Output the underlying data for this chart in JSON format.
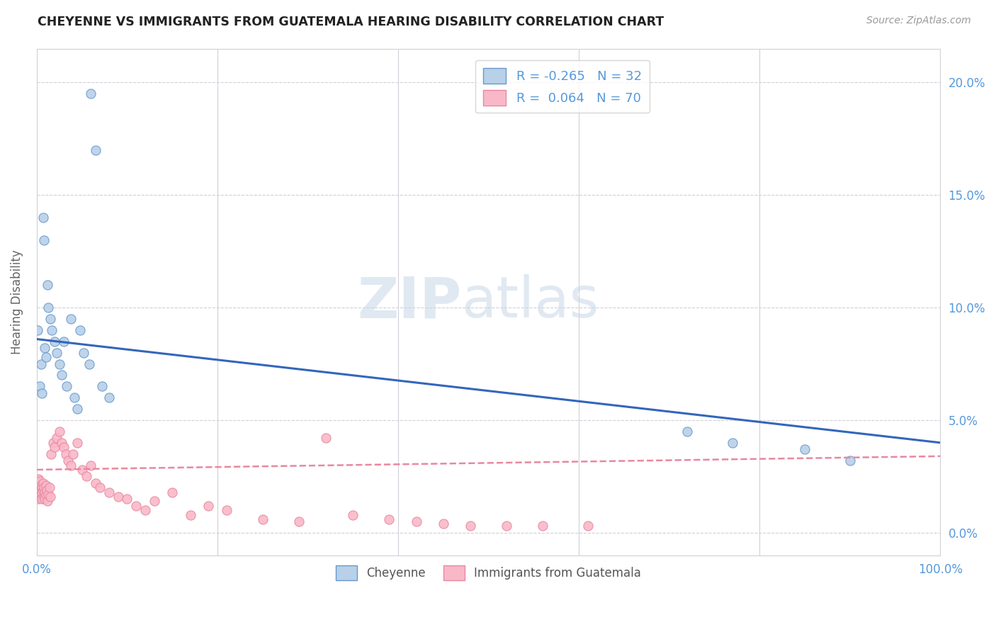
{
  "title": "CHEYENNE VS IMMIGRANTS FROM GUATEMALA HEARING DISABILITY CORRELATION CHART",
  "source": "Source: ZipAtlas.com",
  "ylabel": "Hearing Disability",
  "legend_blue_r": "R = -0.265",
  "legend_blue_n": "N = 32",
  "legend_pink_r": "R =  0.064",
  "legend_pink_n": "N = 70",
  "legend_label_blue": "Cheyenne",
  "legend_label_pink": "Immigrants from Guatemala",
  "watermark_zip": "ZIP",
  "watermark_atlas": "atlas",
  "blue_color": "#b8d0e8",
  "blue_edge_color": "#6699cc",
  "blue_line_color": "#3366bb",
  "pink_color": "#f9b8c8",
  "pink_edge_color": "#e888a0",
  "pink_line_color": "#e888a0",
  "background_color": "#ffffff",
  "grid_color": "#d0d0d8",
  "tick_color": "#5599dd",
  "cheyenne_x": [
    0.001,
    0.003,
    0.005,
    0.006,
    0.007,
    0.008,
    0.009,
    0.01,
    0.012,
    0.013,
    0.015,
    0.017,
    0.02,
    0.022,
    0.025,
    0.028,
    0.03,
    0.033,
    0.038,
    0.042,
    0.045,
    0.048,
    0.052,
    0.058,
    0.06,
    0.065,
    0.072,
    0.08,
    0.72,
    0.77,
    0.85,
    0.9
  ],
  "cheyenne_y": [
    0.09,
    0.065,
    0.075,
    0.062,
    0.14,
    0.13,
    0.082,
    0.078,
    0.11,
    0.1,
    0.095,
    0.09,
    0.085,
    0.08,
    0.075,
    0.07,
    0.085,
    0.065,
    0.095,
    0.06,
    0.055,
    0.09,
    0.08,
    0.075,
    0.195,
    0.17,
    0.065,
    0.06,
    0.045,
    0.04,
    0.037,
    0.032
  ],
  "guatemala_x": [
    0.001,
    0.001,
    0.001,
    0.002,
    0.002,
    0.002,
    0.002,
    0.003,
    0.003,
    0.003,
    0.004,
    0.004,
    0.004,
    0.005,
    0.005,
    0.005,
    0.006,
    0.006,
    0.006,
    0.007,
    0.007,
    0.008,
    0.008,
    0.009,
    0.009,
    0.01,
    0.01,
    0.011,
    0.012,
    0.013,
    0.014,
    0.015,
    0.016,
    0.018,
    0.02,
    0.022,
    0.025,
    0.028,
    0.03,
    0.032,
    0.035,
    0.038,
    0.04,
    0.045,
    0.05,
    0.055,
    0.06,
    0.065,
    0.07,
    0.08,
    0.09,
    0.1,
    0.11,
    0.12,
    0.13,
    0.15,
    0.17,
    0.19,
    0.21,
    0.25,
    0.29,
    0.32,
    0.35,
    0.39,
    0.42,
    0.45,
    0.48,
    0.52,
    0.56,
    0.61
  ],
  "guatemala_y": [
    0.02,
    0.018,
    0.022,
    0.016,
    0.019,
    0.024,
    0.015,
    0.021,
    0.017,
    0.023,
    0.018,
    0.02,
    0.016,
    0.019,
    0.021,
    0.017,
    0.02,
    0.018,
    0.015,
    0.022,
    0.019,
    0.016,
    0.02,
    0.018,
    0.015,
    0.021,
    0.017,
    0.019,
    0.014,
    0.017,
    0.02,
    0.016,
    0.035,
    0.04,
    0.038,
    0.042,
    0.045,
    0.04,
    0.038,
    0.035,
    0.032,
    0.03,
    0.035,
    0.04,
    0.028,
    0.025,
    0.03,
    0.022,
    0.02,
    0.018,
    0.016,
    0.015,
    0.012,
    0.01,
    0.014,
    0.018,
    0.008,
    0.012,
    0.01,
    0.006,
    0.005,
    0.042,
    0.008,
    0.006,
    0.005,
    0.004,
    0.003,
    0.003,
    0.003,
    0.003
  ],
  "cheyenne_trend_x": [
    0.0,
    1.0
  ],
  "cheyenne_trend_y": [
    0.086,
    0.04
  ],
  "guatemala_trend_x": [
    0.0,
    1.0
  ],
  "guatemala_trend_y": [
    0.028,
    0.034
  ],
  "xlim": [
    0.0,
    1.0
  ],
  "ylim": [
    -0.01,
    0.215
  ],
  "yticks": [
    0.0,
    0.05,
    0.1,
    0.15,
    0.2
  ],
  "ytick_labels": [
    "0.0%",
    "5.0%",
    "10.0%",
    "15.0%",
    "20.0%"
  ]
}
